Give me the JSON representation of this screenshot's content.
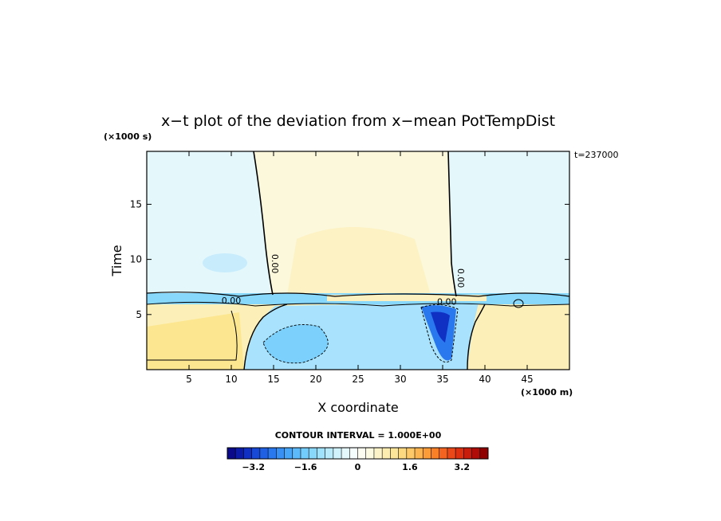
{
  "chart_data": {
    "type": "heatmap",
    "title": "x−t plot of the deviation from x−mean PotTempDist",
    "xlabel": "X coordinate",
    "ylabel": "Time",
    "x_unit": "(×1000 m)",
    "y_unit": "(×1000 s)",
    "time_stamp": "t=237000",
    "xlim": [
      0,
      50
    ],
    "ylim": [
      0,
      19.8
    ],
    "x_ticks": [
      "5",
      "10",
      "15",
      "20",
      "25",
      "30",
      "35",
      "40",
      "45"
    ],
    "y_ticks": [
      "5",
      "10",
      "15"
    ],
    "x_tick_values": [
      5,
      10,
      15,
      20,
      25,
      30,
      35,
      40,
      45
    ],
    "y_tick_values": [
      5,
      10,
      15
    ],
    "contour_labels": [
      {
        "text": "0.00",
        "x": 14.8,
        "y": 9.6,
        "rotate": true
      },
      {
        "text": "0.00",
        "x": 36.8,
        "y": 8.3,
        "rotate": true
      },
      {
        "text": "0.00",
        "x": 10.0,
        "y": 6.0,
        "rotate": false
      },
      {
        "text": "0.00",
        "x": 35.5,
        "y": 5.9,
        "rotate": false
      }
    ],
    "contour_interval": "CONTOUR INTERVAL = 1.000E+00",
    "colorbar": {
      "range": [
        -4,
        4
      ],
      "ticks": [
        "−3.2",
        "−1.6",
        "0",
        "1.6",
        "3.2"
      ],
      "tick_values": [
        -3.2,
        -1.6,
        0,
        1.6,
        3.2
      ],
      "colors": [
        "#0a0a8a",
        "#0c1ca8",
        "#1030c4",
        "#1848d6",
        "#2060e4",
        "#2a78ee",
        "#3890f4",
        "#48a6f8",
        "#5cbafa",
        "#72ccfc",
        "#88d8fc",
        "#a0e2fc",
        "#b8eafc",
        "#d0f2fc",
        "#e4f8fc",
        "#f4fcfc",
        "#fcfcf0",
        "#fcfae0",
        "#fcf4c8",
        "#fcecb0",
        "#fce498",
        "#fcd880",
        "#fcc868",
        "#fcb450",
        "#fc9c38",
        "#fa8028",
        "#f46420",
        "#ea4818",
        "#dc3010",
        "#c81c0c",
        "#b00c08",
        "#900000"
      ]
    }
  }
}
